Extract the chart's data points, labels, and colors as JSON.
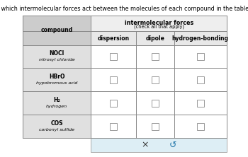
{
  "title": "Decide which intermolecular forces act between the molecules of each compound in the table below.",
  "compounds": [
    {
      "formula": "NOCl",
      "name": "nitrosyl chloride"
    },
    {
      "formula": "HBrO",
      "name": "hypobromous acid"
    },
    {
      "formula": "H₂",
      "name": "hydrogen"
    },
    {
      "formula": "COS",
      "name": "carbonyl sulfide"
    }
  ],
  "header_main": "intermolecular forces",
  "header_sub": "(check all that apply)",
  "col_headers": [
    "dispersion",
    "dipole",
    "hydrogen-bonding"
  ],
  "background_color": "#ffffff",
  "table_bg": "#ffffff",
  "compound_col_bg": "#e0e0e0",
  "border_color": "#888888",
  "text_color": "#000000",
  "button_bg": "#ddeef5",
  "title_fontsize": 5.8,
  "header_fontsize": 5.8,
  "col_header_fontsize": 5.5,
  "compound_fontsize": 5.5,
  "name_fontsize": 4.5,
  "checkbox_size": 0.018
}
